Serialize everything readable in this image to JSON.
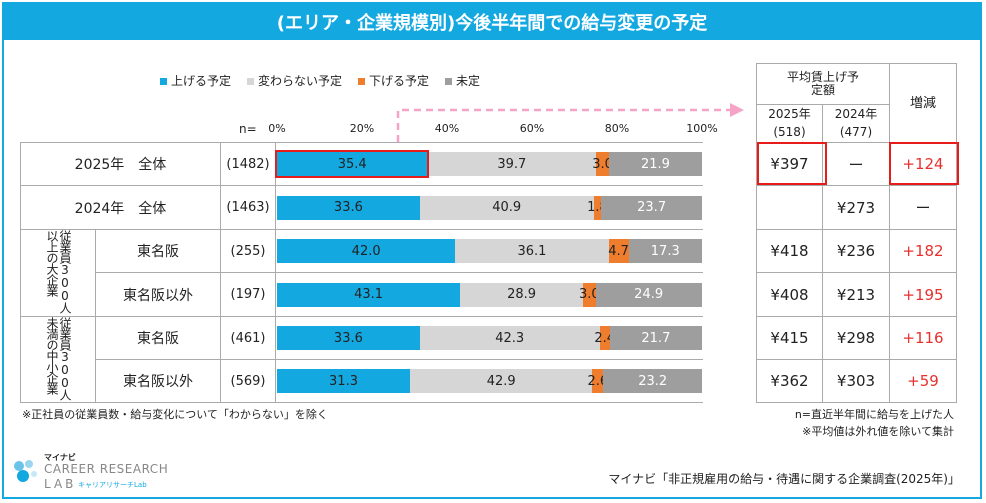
{
  "title": "(エリア・企業規模別)今後半年間での給与変更の予定",
  "legend": [
    {
      "label": "上げる予定",
      "color": "#14a8e1"
    },
    {
      "label": "変わらない予定",
      "color": "#d6d6d6"
    },
    {
      "label": "下げる予定",
      "color": "#ef7d2e"
    },
    {
      "label": "未定",
      "color": "#9e9e9e"
    }
  ],
  "n_prefix": "n=",
  "ticks": [
    "0%",
    "20%",
    "40%",
    "60%",
    "80%",
    "100%"
  ],
  "groups": [
    {
      "label": "従業員300人以上の大企業"
    },
    {
      "label": "従業員300人未満の中小企業"
    }
  ],
  "chart_data": {
    "type": "bar",
    "orientation": "horizontal",
    "stacked": true,
    "unit": "%",
    "xlim": [
      0,
      100
    ],
    "series_names": [
      "上げる予定",
      "変わらない予定",
      "下げる予定",
      "未定"
    ],
    "rows": [
      {
        "label": "2025年　全体",
        "n": "(1482)",
        "values": [
          35.4,
          39.7,
          3.0,
          21.9
        ]
      },
      {
        "label": "2024年　全体",
        "n": "(1463)",
        "values": [
          33.6,
          40.9,
          1.8,
          23.7
        ]
      },
      {
        "label": "東名阪",
        "n": "(255)",
        "values": [
          42.0,
          36.1,
          4.7,
          17.3
        ]
      },
      {
        "label": "東名阪以外",
        "n": "(197)",
        "values": [
          43.1,
          28.9,
          3.0,
          24.9
        ]
      },
      {
        "label": "東名阪",
        "n": "(461)",
        "values": [
          33.6,
          42.3,
          2.4,
          21.7
        ]
      },
      {
        "label": "東名阪以外",
        "n": "(569)",
        "values": [
          31.3,
          42.9,
          2.6,
          23.2
        ]
      }
    ]
  },
  "table": {
    "header_main": "平均賃上げ予定額",
    "col2025": "2025年",
    "col2024": "2024年",
    "n2025": "(518)",
    "n2024": "(477)",
    "diff_header": "増減",
    "rows": [
      {
        "v2025": "¥397",
        "v2024": "ー",
        "diff": "+124"
      },
      {
        "v2025": "",
        "v2024": "¥273",
        "diff": "ー"
      },
      {
        "v2025": "¥418",
        "v2024": "¥236",
        "diff": "+182"
      },
      {
        "v2025": "¥408",
        "v2024": "¥213",
        "diff": "+195"
      },
      {
        "v2025": "¥415",
        "v2024": "¥298",
        "diff": "+116"
      },
      {
        "v2025": "¥362",
        "v2024": "¥303",
        "diff": "+59"
      }
    ]
  },
  "footnotes": {
    "left": "※正社員の従業員数・給与変化について「わからない」を除く",
    "right1": "n=直近半年間に給与を上げた人",
    "right2": "※平均値は外れ値を除いて集計",
    "source": "マイナビ「非正規雇用の給与・待遇に関する企業調査(2025年)」"
  },
  "logo": {
    "small": "マイナビ",
    "line1": "CAREER RESEARCH",
    "line2": "LAB",
    "sub": "キャリアリサーチLab"
  },
  "colors": {
    "accent": "#14a8e1",
    "highlight": "#e81b1b",
    "positive": "#e8302c"
  }
}
